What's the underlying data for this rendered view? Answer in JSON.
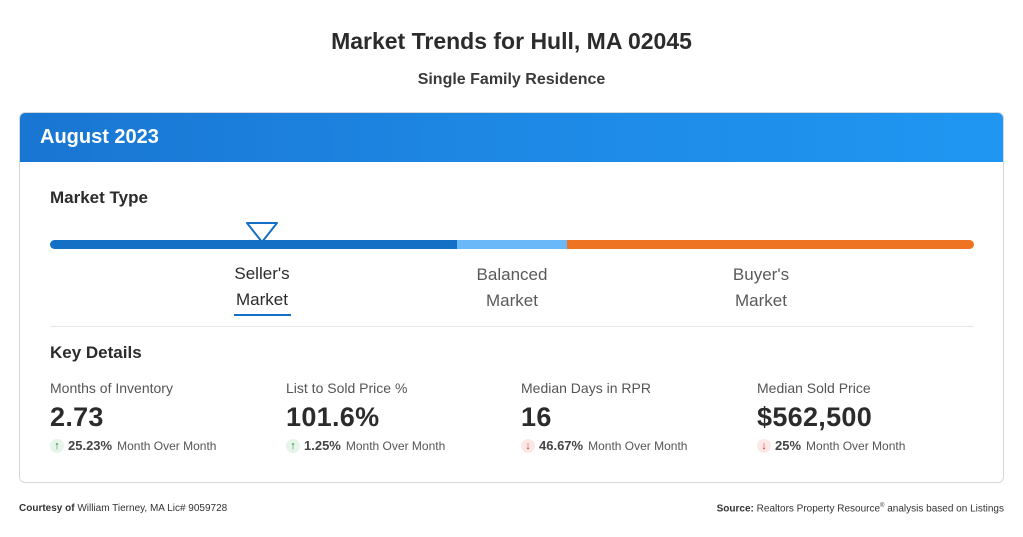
{
  "title": "Market Trends for Hull, MA 02045",
  "subtitle": "Single Family Residence",
  "period": "August 2023",
  "market_type": {
    "heading": "Market Type",
    "labels": [
      {
        "line1": "Seller's",
        "line2": "Market"
      },
      {
        "line1": "Balanced",
        "line2": "Market"
      },
      {
        "line1": "Buyer's",
        "line2": "Market"
      }
    ],
    "current": "Seller's Market",
    "colors": {
      "seller": "#1470c4",
      "balanced": "#6ab8f7",
      "buyer": "#ee7424"
    }
  },
  "key_details": {
    "heading": "Key Details",
    "metrics": [
      {
        "label": "Months of Inventory",
        "value": "2.73",
        "direction": "up",
        "change": "25.23%",
        "period": "Month Over Month"
      },
      {
        "label": "List to Sold Price %",
        "value": "101.6%",
        "direction": "up",
        "change": "1.25%",
        "period": "Month Over Month"
      },
      {
        "label": "Median Days in RPR",
        "value": "16",
        "direction": "down",
        "change": "46.67%",
        "period": "Month Over Month"
      },
      {
        "label": "Median Sold Price",
        "value": "$562,500",
        "direction": "down",
        "change": "25%",
        "period": "Month Over Month"
      }
    ]
  },
  "footer": {
    "courtesy_label": "Courtesy of",
    "courtesy_text": "William Tierney, MA Lic# 9059728",
    "source_label": "Source:",
    "source_text_a": "Realtors Property Resource",
    "source_sup": "®",
    "source_text_b": "analysis based on Listings"
  }
}
